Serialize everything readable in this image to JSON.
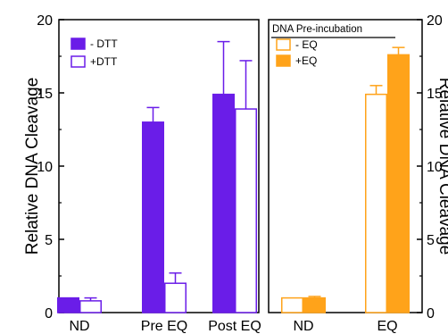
{
  "chart_data": [
    {
      "type": "bar",
      "ylabel": "Relative DNA Cleavage",
      "ylim": [
        0,
        20
      ],
      "yticks": [
        "0",
        "5",
        "10",
        "15",
        "20"
      ],
      "categories": [
        "ND",
        "Pre EQ",
        "Post EQ"
      ],
      "legend_position": "top-left",
      "grid": false,
      "series": [
        {
          "name": "- DTT",
          "style": "filled",
          "color": "#6a1de8",
          "values": [
            1.0,
            13.0,
            14.9
          ],
          "errors": [
            0.0,
            1.0,
            3.6
          ]
        },
        {
          "name": "+DTT",
          "style": "open",
          "color": "#6a1de8",
          "values": [
            0.8,
            2.0,
            13.9
          ],
          "errors": [
            0.2,
            0.7,
            3.3
          ]
        }
      ]
    },
    {
      "type": "bar",
      "ylabel": "Relative DNA Cleavage",
      "ylim": [
        0,
        20
      ],
      "yticks": [
        "0",
        "5",
        "10",
        "15",
        "20"
      ],
      "categories": [
        "ND",
        "EQ"
      ],
      "legend_title": "DNA Pre-incubation",
      "legend_position": "top-left",
      "grid": false,
      "series": [
        {
          "name": "- EQ",
          "style": "open",
          "color": "#ffa31a",
          "values": [
            1.0,
            14.9
          ],
          "errors": [
            0.0,
            0.6
          ]
        },
        {
          "name": "+EQ",
          "style": "filled",
          "color": "#ffa31a",
          "values": [
            1.0,
            17.6
          ],
          "errors": [
            0.1,
            0.5
          ]
        }
      ]
    }
  ]
}
